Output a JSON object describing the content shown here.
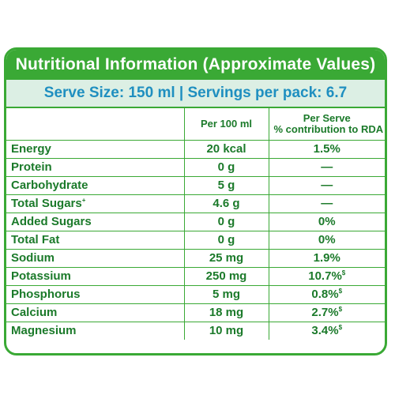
{
  "panel": {
    "title": "Nutritional Information (Approximate Values)",
    "serve_line": "Serve Size: 150 ml | Servings per pack: 6.7"
  },
  "table": {
    "headers": {
      "col1": "",
      "col2": "Per 100 ml",
      "col3_line1": "Per Serve",
      "col3_line2": "% contribution to RDA"
    },
    "rows": [
      {
        "name": "Energy",
        "per100": "20 kcal",
        "rda": "1.5%",
        "rda_mark": "",
        "name_mark": ""
      },
      {
        "name": "Protein",
        "per100": "0 g",
        "rda": "—",
        "rda_mark": "",
        "name_mark": ""
      },
      {
        "name": "Carbohydrate",
        "per100": "5 g",
        "rda": "—",
        "rda_mark": "",
        "name_mark": ""
      },
      {
        "name": "Total Sugars",
        "per100": "4.6 g",
        "rda": "—",
        "rda_mark": "",
        "name_mark": "+"
      },
      {
        "name": "Added Sugars",
        "per100": "0 g",
        "rda": "0%",
        "rda_mark": "",
        "name_mark": ""
      },
      {
        "name": "Total Fat",
        "per100": "0 g",
        "rda": "0%",
        "rda_mark": "",
        "name_mark": ""
      },
      {
        "name": "Sodium",
        "per100": "25 mg",
        "rda": "1.9%",
        "rda_mark": "",
        "name_mark": ""
      },
      {
        "name": "Potassium",
        "per100": "250 mg",
        "rda": "10.7%",
        "rda_mark": "$",
        "name_mark": ""
      },
      {
        "name": "Phosphorus",
        "per100": "5 mg",
        "rda": "0.8%",
        "rda_mark": "$",
        "name_mark": ""
      },
      {
        "name": "Calcium",
        "per100": "18 mg",
        "rda": "2.7%",
        "rda_mark": "$",
        "name_mark": ""
      },
      {
        "name": "Magnesium",
        "per100": "10 mg",
        "rda": "3.4%",
        "rda_mark": "$",
        "name_mark": ""
      }
    ]
  }
}
